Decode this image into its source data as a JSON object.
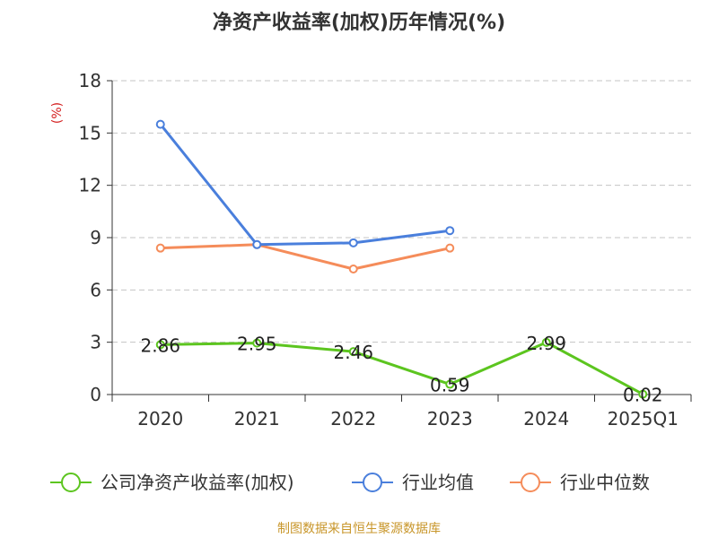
{
  "chart_data": {
    "type": "line",
    "title": "净资产收益率(加权)历年情况(%)",
    "ylabel": "(%)",
    "xlabel": "",
    "categories": [
      "2020",
      "2021",
      "2022",
      "2023",
      "2024",
      "2025Q1"
    ],
    "ylim": [
      0,
      18
    ],
    "yticks": [
      0,
      3,
      6,
      9,
      12,
      15,
      18
    ],
    "grid": true,
    "legend_position": "bottom",
    "series": [
      {
        "name": "公司净资产收益率(加权)",
        "color": "#5cc51f",
        "values": [
          2.86,
          2.95,
          2.46,
          0.59,
          2.99,
          0.02
        ],
        "labels": [
          "2.86",
          "2.95",
          "2.46",
          "0.59",
          "2.99",
          "0.02"
        ]
      },
      {
        "name": "行业均值",
        "color": "#4a7fdc",
        "values": [
          15.5,
          8.6,
          8.7,
          9.4,
          null,
          null
        ]
      },
      {
        "name": "行业中位数",
        "color": "#f58c5a",
        "values": [
          8.4,
          8.6,
          7.2,
          8.4,
          null,
          null
        ]
      }
    ]
  },
  "footer": {
    "source": "制图数据来自恒生聚源数据库"
  }
}
